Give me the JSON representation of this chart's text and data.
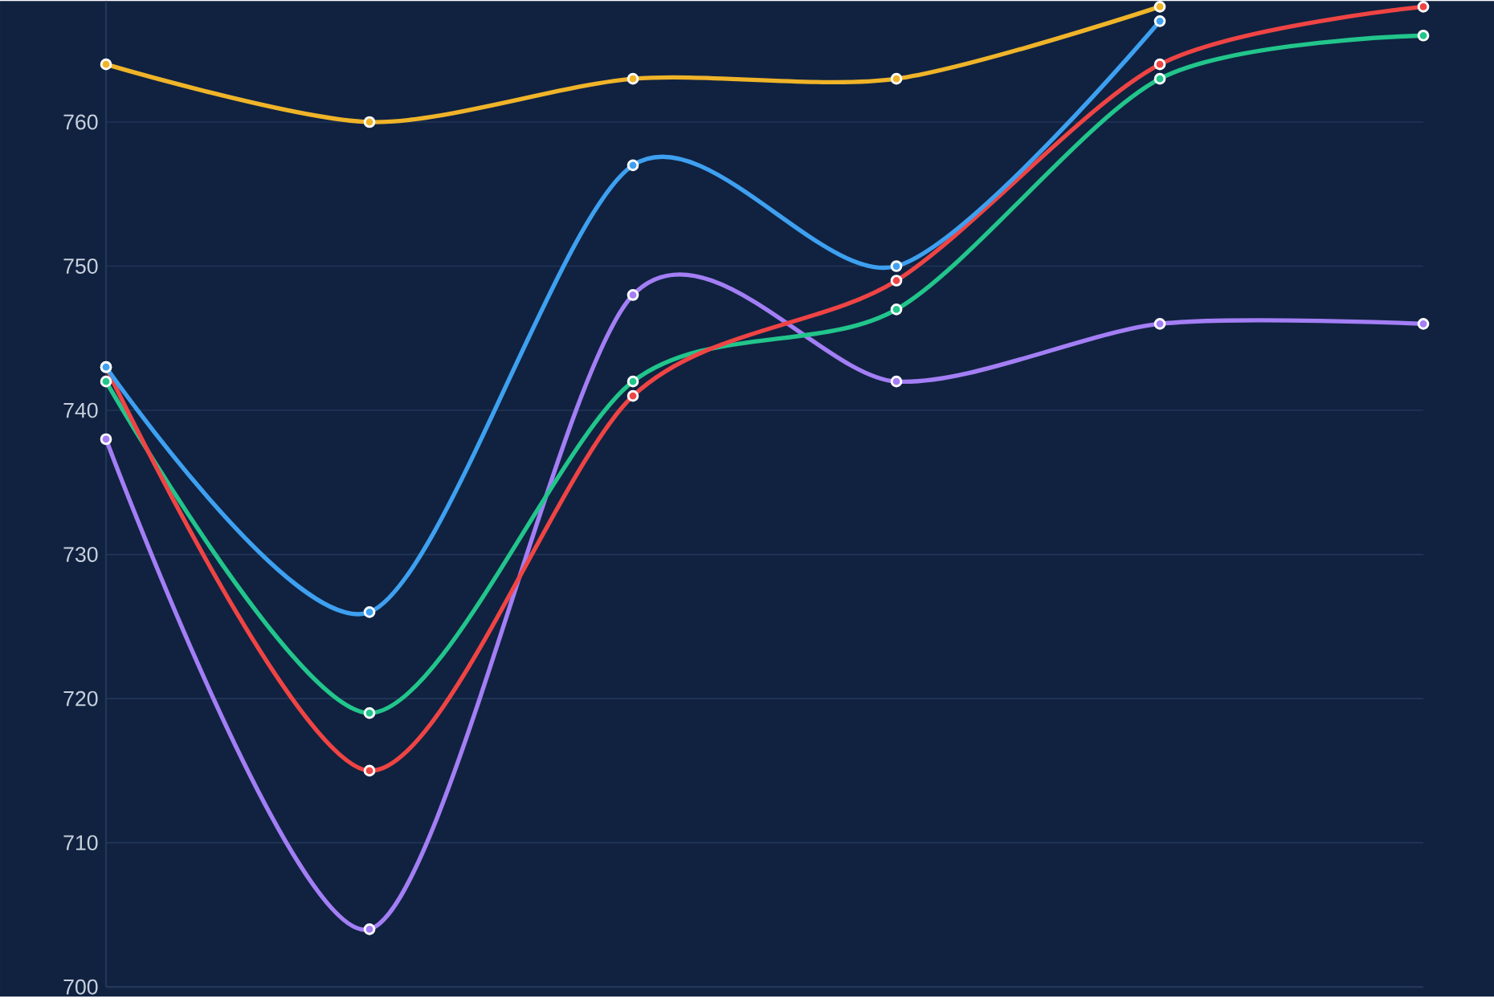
{
  "chart_data": {
    "type": "line",
    "categories": [
      null,
      null,
      null,
      null,
      null,
      null
    ],
    "series": [
      {
        "color": "#f0b429",
        "values": [
          764,
          760,
          763,
          763,
          768,
          null
        ]
      },
      {
        "color": "#3ea0f0",
        "values": [
          743,
          726,
          757,
          750,
          767,
          null
        ]
      },
      {
        "color": "#ef4444",
        "values": [
          743,
          715,
          741,
          749,
          764,
          768
        ]
      },
      {
        "color": "#22c58b",
        "values": [
          742,
          719,
          742,
          747,
          763,
          766
        ]
      },
      {
        "color": "#a37ef5",
        "values": [
          738,
          704,
          748,
          742,
          746,
          746
        ]
      }
    ],
    "ylim": [
      700,
      768.4
    ],
    "yticks": [
      700,
      710,
      720,
      730,
      740,
      750,
      760
    ],
    "grid": "y",
    "marker": "circle",
    "line_style": "solid",
    "tick_labels": "y"
  }
}
